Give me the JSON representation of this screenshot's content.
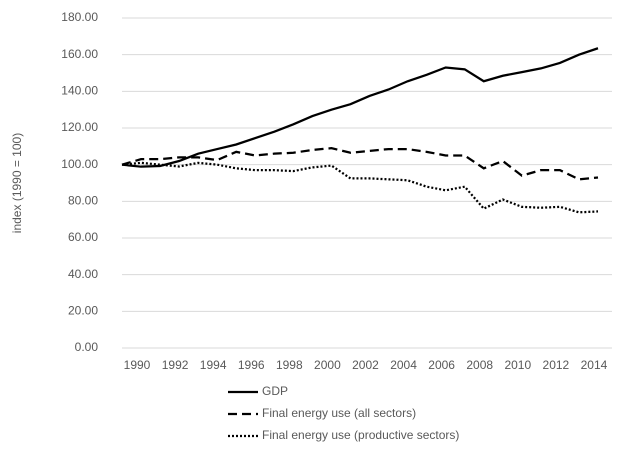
{
  "chart_data": {
    "type": "line",
    "y_label": "index (1990 = 100)",
    "x": [
      1990,
      1991,
      1992,
      1993,
      1994,
      1995,
      1996,
      1997,
      1998,
      1999,
      2000,
      2001,
      2002,
      2003,
      2004,
      2005,
      2006,
      2007,
      2008,
      2009,
      2010,
      2011,
      2012,
      2013,
      2014,
      2015
    ],
    "xlim": [
      1990,
      2015
    ],
    "xticks": [
      1990,
      1992,
      1994,
      1996,
      1998,
      2000,
      2002,
      2004,
      2006,
      2008,
      2010,
      2012,
      2014
    ],
    "ylim": [
      0,
      180
    ],
    "yticks": [
      {
        "value": 0,
        "label": "0.00"
      },
      {
        "value": 20,
        "label": "20.00"
      },
      {
        "value": 40,
        "label": "40.00"
      },
      {
        "value": 60,
        "label": "60.00"
      },
      {
        "value": 80,
        "label": "80.00"
      },
      {
        "value": 100,
        "label": "100.00"
      },
      {
        "value": 120,
        "label": "120.00"
      },
      {
        "value": 140,
        "label": "140.00"
      },
      {
        "value": 160,
        "label": "160.00"
      },
      {
        "value": 180,
        "label": "180.00"
      }
    ],
    "grid": true,
    "legend": "bottom",
    "series": [
      {
        "name": "GDP",
        "color": "#000000",
        "dash": "solid",
        "values": [
          100,
          98.9,
          99.3,
          102,
          106,
          108.5,
          111,
          114.5,
          118,
          122,
          126.5,
          130,
          133,
          137.5,
          141,
          145.5,
          149,
          153,
          152,
          145.5,
          148.5,
          150.5,
          152.5,
          155.5,
          160,
          163.5
        ]
      },
      {
        "name": "Final energy use (all sectors)",
        "color": "#000000",
        "dash": "dashed",
        "values": [
          100,
          103,
          103,
          104,
          104,
          102.5,
          107,
          105,
          106,
          106.5,
          108,
          109,
          106.5,
          107.5,
          108.5,
          108.5,
          107,
          105,
          105,
          98,
          102,
          94,
          97,
          97,
          92,
          93
        ]
      },
      {
        "name": "Final energy use (productive sectors)",
        "color": "#000000",
        "dash": "dotted",
        "values": [
          100,
          101,
          100,
          99,
          101,
          100,
          98,
          97,
          97,
          96.5,
          98.5,
          99.5,
          92.5,
          92.5,
          92,
          91.5,
          88,
          86,
          88,
          76,
          81,
          77,
          76.5,
          77,
          74,
          74.5
        ]
      }
    ]
  }
}
